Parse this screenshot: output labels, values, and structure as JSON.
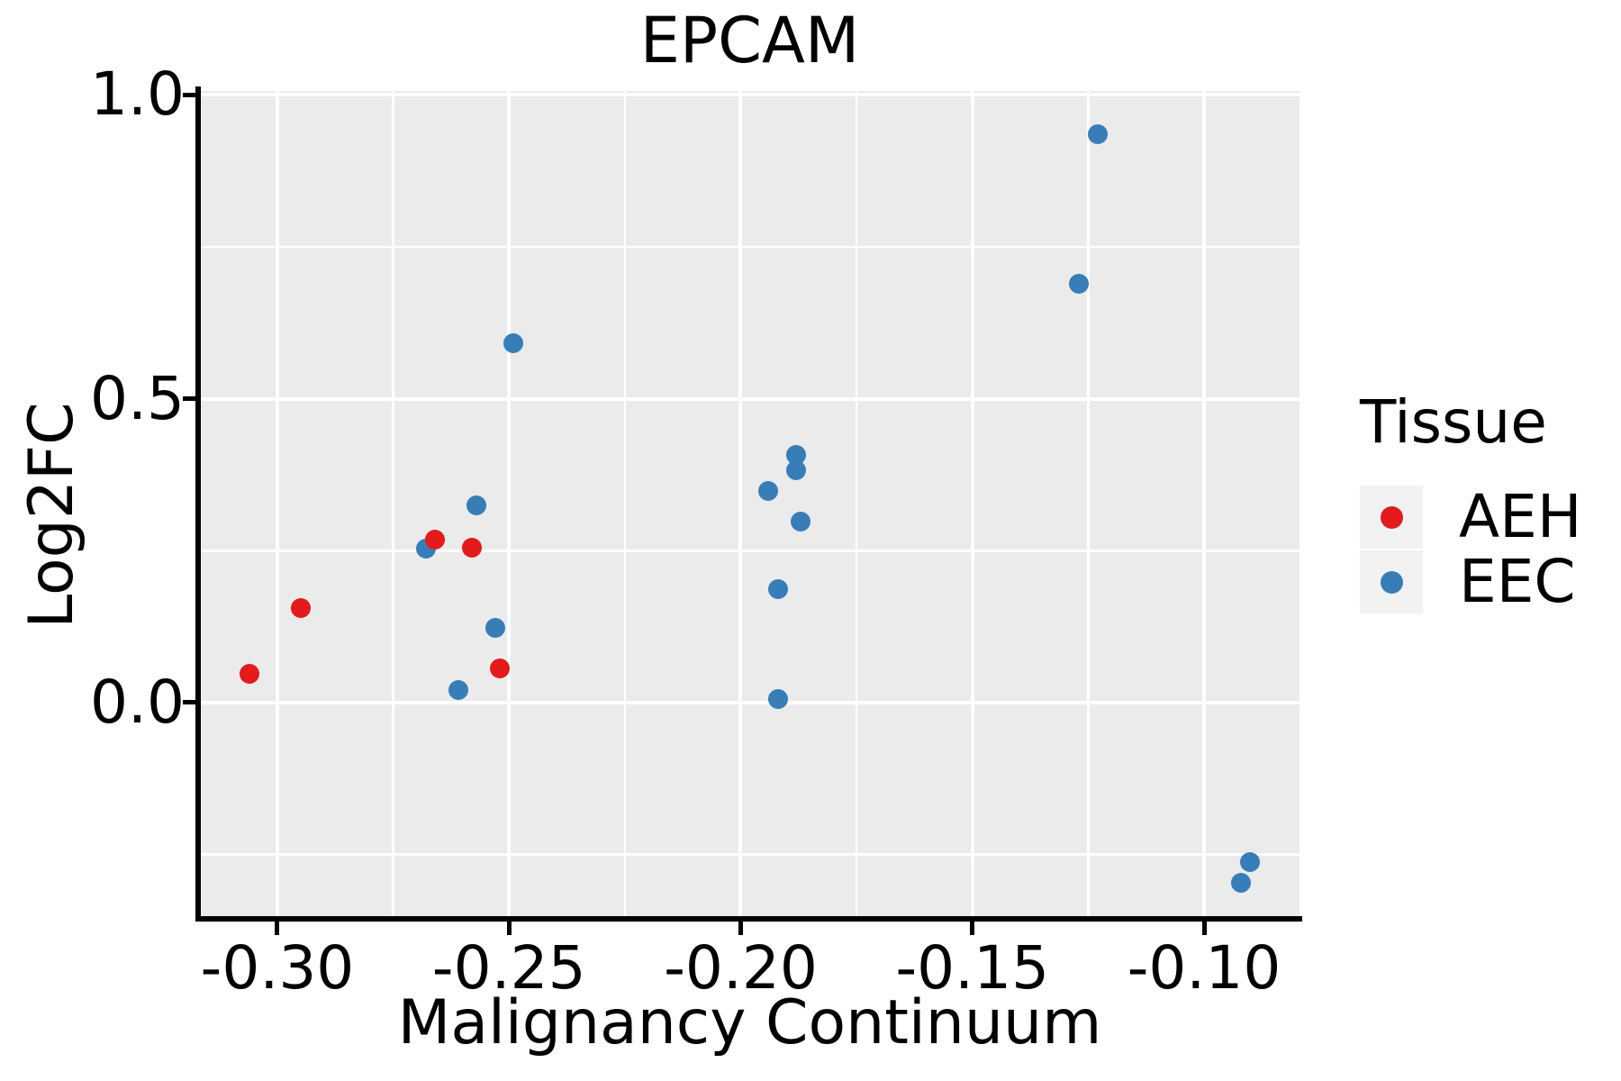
{
  "chart_data": {
    "type": "scatter",
    "title": "EPCAM",
    "xlabel": "Malignancy Continuum",
    "ylabel": "Log2FC",
    "legend_title": "Tissue",
    "legend_position": "right",
    "background": "#FFFFFF",
    "panel_background": "#EBEBEB",
    "grid_color": "#FFFFFF",
    "axis_color": "#000000",
    "text_color": "#000000",
    "grid": "on",
    "xlim": [
      -0.3167,
      -0.0794
    ],
    "ylim": [
      -0.3558,
      1.0065
    ],
    "x_ticks": [
      {
        "value": -0.3,
        "label": "-0.30"
      },
      {
        "value": -0.25,
        "label": "-0.25"
      },
      {
        "value": -0.2,
        "label": "-0.20"
      },
      {
        "value": -0.15,
        "label": "-0.15"
      },
      {
        "value": -0.1,
        "label": "-0.10"
      }
    ],
    "y_ticks": [
      {
        "value": 0.0,
        "label": "0.0"
      },
      {
        "value": 0.5,
        "label": "0.5"
      },
      {
        "value": 1.0,
        "label": "1.0"
      }
    ],
    "x_minor_ticks": [
      -0.275,
      -0.225,
      -0.175,
      -0.125
    ],
    "y_minor_ticks": [
      -0.25,
      0.25,
      0.75
    ],
    "series": [
      {
        "name": "AEH",
        "color": "#E41A1C",
        "points": [
          [
            -0.306,
            0.047
          ],
          [
            -0.295,
            0.156
          ],
          [
            -0.266,
            0.268
          ],
          [
            -0.258,
            0.255
          ],
          [
            -0.252,
            0.057
          ]
        ]
      },
      {
        "name": "EEC",
        "color": "#377EB8",
        "points": [
          [
            -0.268,
            0.254
          ],
          [
            -0.261,
            0.02
          ],
          [
            -0.257,
            0.324
          ],
          [
            -0.253,
            0.123
          ],
          [
            -0.249,
            0.592
          ],
          [
            -0.194,
            0.349
          ],
          [
            -0.192,
            0.187
          ],
          [
            -0.192,
            0.006
          ],
          [
            -0.188,
            0.407
          ],
          [
            -0.188,
            0.382
          ],
          [
            -0.187,
            0.298
          ],
          [
            -0.127,
            0.69
          ],
          [
            -0.123,
            0.936
          ],
          [
            -0.09,
            -0.263
          ],
          [
            -0.092,
            -0.297
          ]
        ]
      }
    ]
  }
}
